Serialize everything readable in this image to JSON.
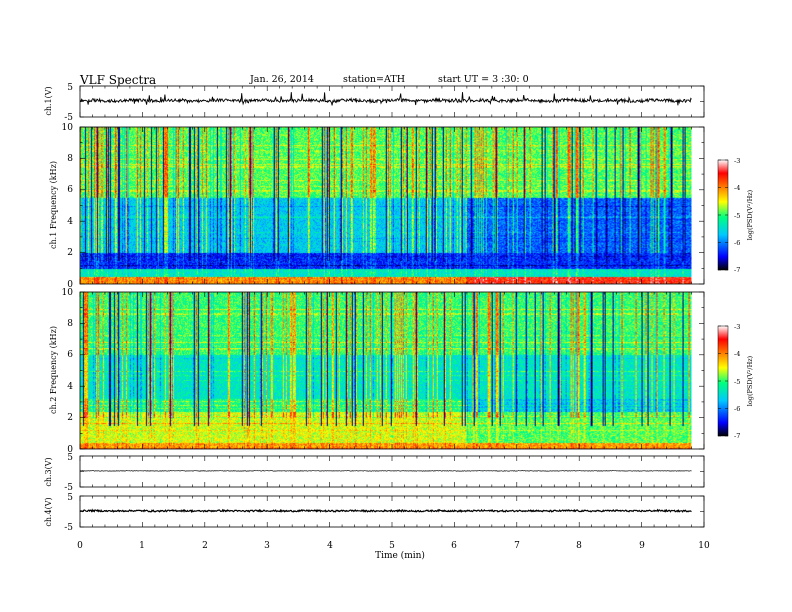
{
  "header": {
    "title": "VLF Spectra",
    "date": "Jan. 26, 2014",
    "station": "station=ATH",
    "start": "start UT = 3 :30: 0"
  },
  "chart_data": [
    {
      "type": "line",
      "name": "ch1-waveform",
      "ylabel": "ch.1(V)",
      "ylim": [
        -5,
        5
      ],
      "yticks": [
        "5",
        "-5"
      ],
      "baseline_value": 0.3,
      "noise_amplitude": 0.5,
      "xlim": [
        0,
        10
      ]
    },
    {
      "type": "heatmap",
      "name": "ch1-spectrogram",
      "ylabel": "ch.1 Frequency (kHz)",
      "xlim": [
        0,
        10
      ],
      "ylim": [
        0,
        10
      ],
      "yticks": [
        "0",
        "2",
        "4",
        "6",
        "8",
        "10"
      ],
      "data_end_min": 9.8,
      "colorbar": {
        "label": "log(PSD(V²/Hz)",
        "range": [
          -7,
          -3
        ],
        "ticks": [
          "-3",
          "-4",
          "-5",
          "-6",
          "-7"
        ]
      }
    },
    {
      "type": "heatmap",
      "name": "ch2-spectrogram",
      "ylabel": "ch.2 Frequency (kHz)",
      "xlim": [
        0,
        10
      ],
      "ylim": [
        0,
        10
      ],
      "yticks": [
        "0",
        "2",
        "4",
        "6",
        "8",
        "10"
      ],
      "data_end_min": 9.8,
      "colorbar": {
        "label": "log(PSD(V²/Hz)",
        "range": [
          -7,
          -3
        ],
        "ticks": [
          "-3",
          "-4",
          "-5",
          "-6",
          "-7"
        ]
      }
    },
    {
      "type": "line",
      "name": "ch3-waveform",
      "ylabel": "ch.3(V)",
      "ylim": [
        -5,
        5
      ],
      "yticks": [
        "5",
        "-5"
      ],
      "baseline_value": 0.2,
      "noise_amplitude": 0.08,
      "xlim": [
        0,
        10
      ]
    },
    {
      "type": "line",
      "name": "ch4-waveform",
      "ylabel": "ch.4(V)",
      "ylim": [
        -5,
        5
      ],
      "yticks": [
        "5",
        "-5"
      ],
      "baseline_value": 0.2,
      "noise_amplitude": 0.25,
      "xlim": [
        0,
        10
      ]
    }
  ],
  "xaxis": {
    "label": "Time (min)",
    "ticks": [
      "0",
      "1",
      "2",
      "3",
      "4",
      "5",
      "6",
      "7",
      "8",
      "9",
      "10"
    ]
  }
}
